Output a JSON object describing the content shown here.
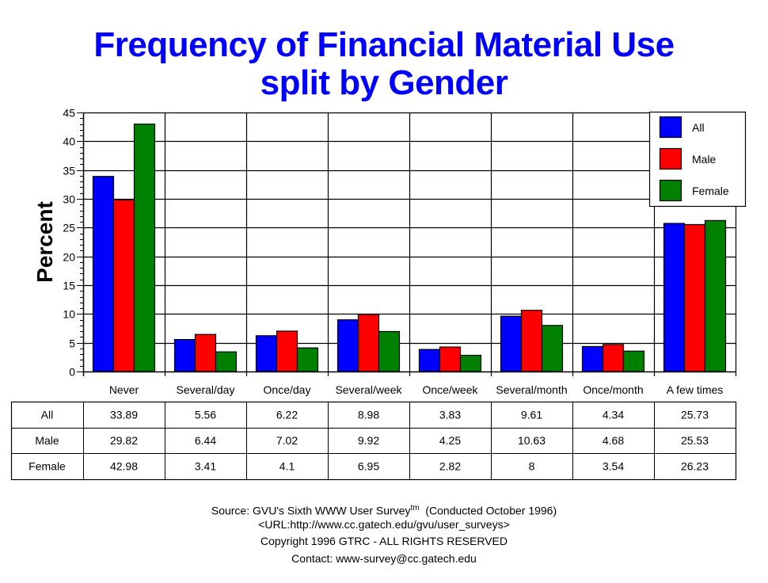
{
  "chart_data": {
    "type": "bar",
    "title": "Frequency of Financial Material Use",
    "subtitle": "split by Gender",
    "xlabel": "",
    "ylabel": "Percent",
    "ylim": [
      0,
      45
    ],
    "yticks": [
      0,
      5,
      10,
      15,
      20,
      25,
      30,
      35,
      40,
      45
    ],
    "grid": true,
    "legend_position": "top-right",
    "categories": [
      "Never",
      "Several/day",
      "Once/day",
      "Several/week",
      "Once/week",
      "Several/month",
      "Once/month",
      "A few times"
    ],
    "series": [
      {
        "name": "All",
        "color": "#0000ff",
        "values": [
          33.89,
          5.56,
          6.22,
          8.98,
          3.83,
          9.61,
          4.34,
          25.73
        ]
      },
      {
        "name": "Male",
        "color": "#ff0000",
        "values": [
          29.82,
          6.44,
          7.02,
          9.92,
          4.25,
          10.63,
          4.68,
          25.53
        ]
      },
      {
        "name": "Female",
        "color": "#008000",
        "values": [
          42.98,
          3.41,
          4.1,
          6.95,
          2.82,
          8,
          3.54,
          26.23
        ]
      }
    ],
    "table": {
      "rows": [
        {
          "label": "All",
          "cells": [
            "33.89",
            "5.56",
            "6.22",
            "8.98",
            "3.83",
            "9.61",
            "4.34",
            "25.73"
          ]
        },
        {
          "label": "Male",
          "cells": [
            "29.82",
            "6.44",
            "7.02",
            "9.92",
            "4.25",
            "10.63",
            "4.68",
            "25.53"
          ]
        },
        {
          "label": "Female",
          "cells": [
            "42.98",
            "3.41",
            "4.1",
            "6.95",
            "2.82",
            "8",
            "3.54",
            "26.23"
          ]
        }
      ]
    }
  },
  "footer": {
    "source_prefix": "Source: GVU's Sixth WWW User Survey",
    "source_tm": "tm",
    "source_suffix": "  (Conducted October 1996)",
    "url": "<URL:http://www.cc.gatech.edu/gvu/user_surveys>",
    "copyright": "Copyright 1996 GTRC -  ALL RIGHTS RESERVED",
    "contact": "Contact: www-survey@cc.gatech.edu"
  }
}
